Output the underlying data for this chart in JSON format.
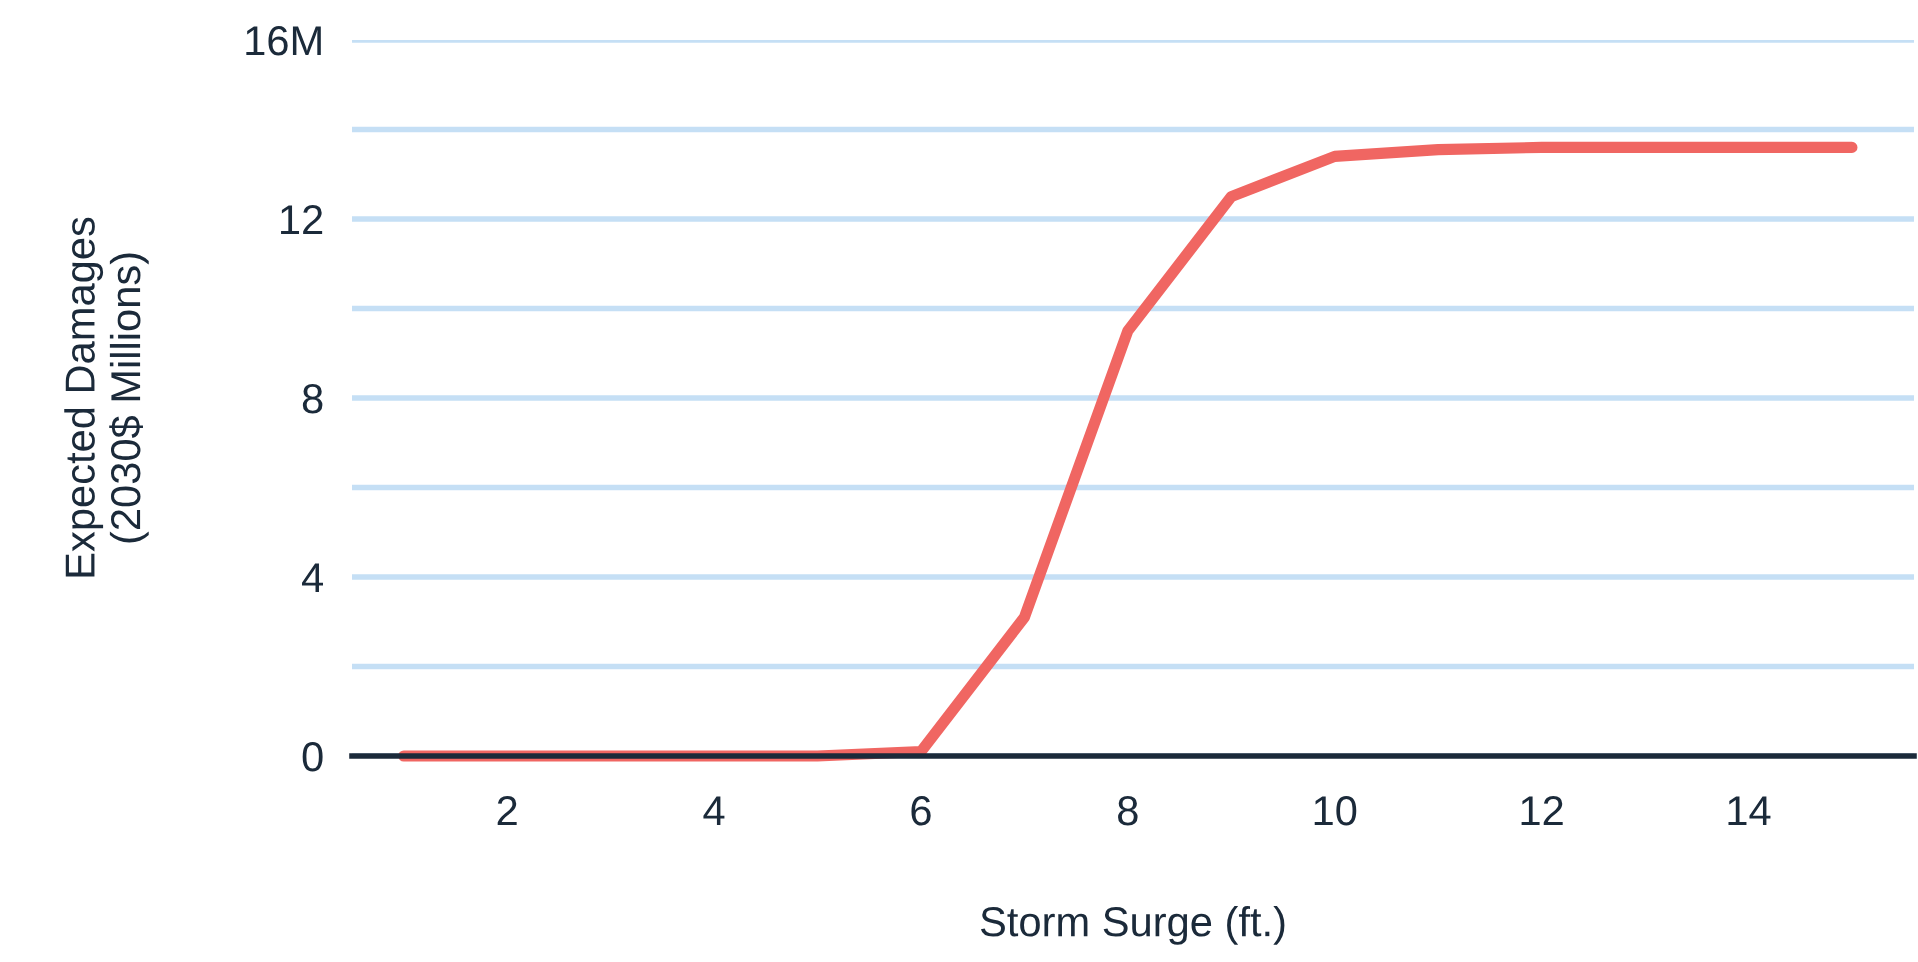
{
  "chart_data": {
    "type": "line",
    "xlabel": "Storm Surge (ft.)",
    "ylabel": "Expected Damages\n(2030$ Millions)",
    "x": [
      1,
      2,
      3,
      4,
      5,
      6,
      7,
      8,
      9,
      10,
      11,
      12,
      13,
      14,
      15
    ],
    "series": [
      {
        "color": "#f06662",
        "values": [
          0,
          0,
          0,
          0,
          0,
          0.1,
          3.1,
          9.5,
          12.5,
          13.4,
          13.55,
          13.6,
          13.6,
          13.6,
          13.6
        ]
      }
    ],
    "xlim": [
      0.5,
      15.6
    ],
    "xticks": [
      2,
      4,
      6,
      8,
      10,
      12,
      14
    ],
    "ylim": [
      0,
      16
    ],
    "yticks": [
      0,
      {
        "value": 2,
        "label": null
      },
      4,
      {
        "value": 6,
        "label": null
      },
      8,
      {
        "value": 10,
        "label": null
      },
      12,
      {
        "value": 14,
        "label": null
      },
      {
        "value": 16,
        "label": "16M"
      }
    ],
    "grid": "y",
    "marker": "none",
    "line_style": "solid"
  }
}
